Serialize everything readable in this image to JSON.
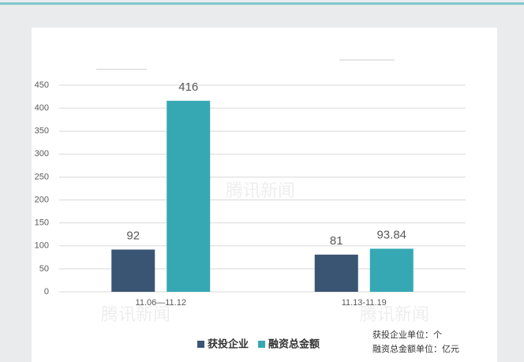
{
  "chart_data": {
    "type": "bar",
    "categories": [
      "11.06—11.12",
      "11.13-11.19"
    ],
    "series": [
      {
        "name": "获投企业",
        "color": "#3a5473",
        "values": [
          92,
          81
        ]
      },
      {
        "name": "融资总金额",
        "color": "#35a8b3",
        "values": [
          416,
          93.84
        ]
      }
    ],
    "ylim": [
      0,
      450
    ],
    "yticks": [
      0,
      50,
      100,
      150,
      200,
      250,
      300,
      350,
      400,
      450
    ],
    "grid": true,
    "notes": [
      "获投企业单位：个",
      "融资总金额单位：亿元"
    ],
    "watermark": "腾讯新闻"
  }
}
